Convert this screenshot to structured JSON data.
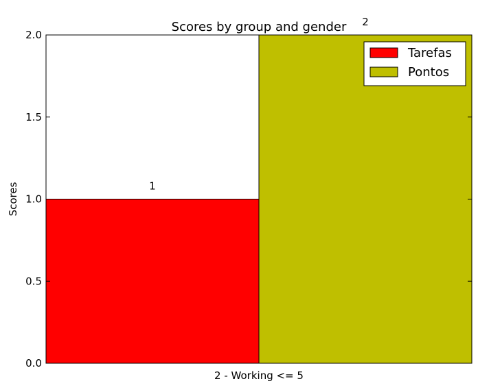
{
  "chart_data": {
    "type": "bar",
    "title": "Scores by group and gender",
    "xlabel": "",
    "ylabel": "Scores",
    "categories": [
      "2 - Working <= 5"
    ],
    "ylim": [
      0,
      2.0
    ],
    "yticks": [
      0.0,
      0.5,
      1.0,
      1.5,
      2.0
    ],
    "ytick_labels": [
      "0.0",
      "0.5",
      "1.0",
      "1.5",
      "2.0"
    ],
    "grid": false,
    "legend_position": "top-right",
    "series": [
      {
        "name": "Tarefas",
        "values": [
          1
        ],
        "labels": [
          "1"
        ],
        "color": "#ff0000"
      },
      {
        "name": "Pontos",
        "values": [
          2
        ],
        "labels": [
          "2"
        ],
        "color": "#bfbf00"
      }
    ]
  }
}
